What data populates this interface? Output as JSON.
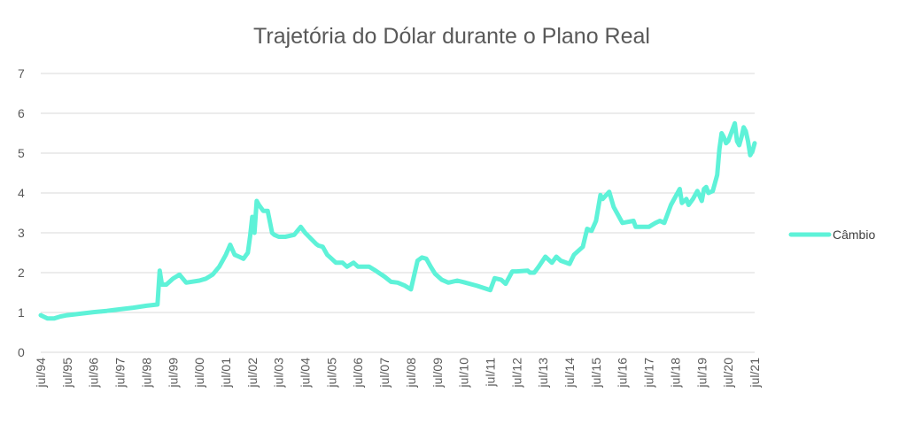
{
  "chart_data": {
    "type": "line",
    "title": "Trajetória do Dólar durante o Plano Real",
    "xlabel": "",
    "ylabel": "",
    "ylim": [
      0,
      7
    ],
    "yticks": [
      0,
      1,
      2,
      3,
      4,
      5,
      6,
      7
    ],
    "grid": true,
    "legend_position": "right",
    "x_tick_labels": [
      "jul/94",
      "jul/95",
      "jul/96",
      "jul/97",
      "jul/98",
      "jul/99",
      "jul/00",
      "jul/01",
      "jul/02",
      "jul/03",
      "jul/04",
      "jul/05",
      "jul/06",
      "jul/07",
      "jul/08",
      "jul/09",
      "jul/10",
      "jul/11",
      "jul/12",
      "jul/13",
      "jul/14",
      "jul/15",
      "jul/16",
      "jul/17",
      "jul/18",
      "jul/19",
      "jul/20",
      "jul/21"
    ],
    "series": [
      {
        "name": "Câmbio",
        "color": "#5ef2d8",
        "points": [
          [
            "jul/94",
            0.93
          ],
          [
            "out/94",
            0.85
          ],
          [
            "jan/95",
            0.85
          ],
          [
            "abr/95",
            0.9
          ],
          [
            "jul/95",
            0.93
          ],
          [
            "jan/96",
            0.97
          ],
          [
            "jul/96",
            1.01
          ],
          [
            "jan/97",
            1.04
          ],
          [
            "jul/97",
            1.08
          ],
          [
            "jan/98",
            1.12
          ],
          [
            "jul/98",
            1.17
          ],
          [
            "dez/98",
            1.2
          ],
          [
            "jan/99",
            2.05
          ],
          [
            "fev/99",
            1.7
          ],
          [
            "abr/99",
            1.7
          ],
          [
            "jun/99",
            1.8
          ],
          [
            "jul/99",
            1.85
          ],
          [
            "out/99",
            1.95
          ],
          [
            "jan/00",
            1.75
          ],
          [
            "jul/00",
            1.8
          ],
          [
            "out/00",
            1.85
          ],
          [
            "jan/01",
            1.95
          ],
          [
            "abr/01",
            2.15
          ],
          [
            "jul/01",
            2.45
          ],
          [
            "set/01",
            2.7
          ],
          [
            "nov/01",
            2.45
          ],
          [
            "jan/02",
            2.4
          ],
          [
            "mar/02",
            2.35
          ],
          [
            "mai/02",
            2.5
          ],
          [
            "jun/02",
            2.9
          ],
          [
            "jul/02",
            3.4
          ],
          [
            "ago/02",
            3.0
          ],
          [
            "set/02",
            3.8
          ],
          [
            "out/02",
            3.7
          ],
          [
            "dez/02",
            3.55
          ],
          [
            "fev/03",
            3.55
          ],
          [
            "abr/03",
            3.0
          ],
          [
            "mai/03",
            2.95
          ],
          [
            "jul/03",
            2.9
          ],
          [
            "out/03",
            2.9
          ],
          [
            "fev/04",
            2.95
          ],
          [
            "mai/04",
            3.15
          ],
          [
            "jul/04",
            3.0
          ],
          [
            "dez/04",
            2.72
          ],
          [
            "jan/05",
            2.68
          ],
          [
            "mar/05",
            2.65
          ],
          [
            "mai/05",
            2.45
          ],
          [
            "jul/05",
            2.35
          ],
          [
            "set/05",
            2.25
          ],
          [
            "dez/05",
            2.25
          ],
          [
            "fev/06",
            2.15
          ],
          [
            "mai/06",
            2.25
          ],
          [
            "jul/06",
            2.15
          ],
          [
            "dez/06",
            2.15
          ],
          [
            "mar/07",
            2.05
          ],
          [
            "jul/07",
            1.9
          ],
          [
            "out/07",
            1.77
          ],
          [
            "jan/08",
            1.75
          ],
          [
            "abr/08",
            1.68
          ],
          [
            "jul/08",
            1.58
          ],
          [
            "out/08",
            2.3
          ],
          [
            "dez/08",
            2.38
          ],
          [
            "fev/09",
            2.35
          ],
          [
            "abr/09",
            2.15
          ],
          [
            "jun/09",
            1.97
          ],
          [
            "set/09",
            1.82
          ],
          [
            "dez/09",
            1.75
          ],
          [
            "abr/10",
            1.8
          ],
          [
            "jul/10",
            1.76
          ],
          [
            "jan/11",
            1.67
          ],
          [
            "jul/11",
            1.56
          ],
          [
            "set/11",
            1.86
          ],
          [
            "dez/11",
            1.82
          ],
          [
            "fev/12",
            1.72
          ],
          [
            "mai/12",
            2.03
          ],
          [
            "jul/12",
            2.03
          ],
          [
            "dez/12",
            2.05
          ],
          [
            "jan/13",
            2.0
          ],
          [
            "mar/13",
            2.0
          ],
          [
            "mai/13",
            2.15
          ],
          [
            "ago/13",
            2.4
          ],
          [
            "nov/13",
            2.25
          ],
          [
            "jan/14",
            2.4
          ],
          [
            "mar/14",
            2.3
          ],
          [
            "jul/14",
            2.22
          ],
          [
            "set/14",
            2.45
          ],
          [
            "jan/15",
            2.65
          ],
          [
            "mar/15",
            3.1
          ],
          [
            "mai/15",
            3.05
          ],
          [
            "jul/15",
            3.3
          ],
          [
            "set/15",
            3.95
          ],
          [
            "out/15",
            3.85
          ],
          [
            "jan/16",
            4.03
          ],
          [
            "mar/16",
            3.65
          ],
          [
            "jul/16",
            3.25
          ],
          [
            "dez/16",
            3.3
          ],
          [
            "jan/17",
            3.15
          ],
          [
            "jul/17",
            3.15
          ],
          [
            "out/17",
            3.25
          ],
          [
            "dez/17",
            3.3
          ],
          [
            "fev/18",
            3.25
          ],
          [
            "mai/18",
            3.7
          ],
          [
            "set/18",
            4.1
          ],
          [
            "out/18",
            3.75
          ],
          [
            "dez/18",
            3.85
          ],
          [
            "jan/19",
            3.7
          ],
          [
            "mar/19",
            3.85
          ],
          [
            "mai/19",
            4.05
          ],
          [
            "jul/19",
            3.8
          ],
          [
            "ago/19",
            4.1
          ],
          [
            "set/19",
            4.15
          ],
          [
            "out/19",
            4.0
          ],
          [
            "dez/19",
            4.05
          ],
          [
            "jan/20",
            4.25
          ],
          [
            "fev/20",
            4.45
          ],
          [
            "mar/20",
            5.1
          ],
          [
            "abr/20",
            5.5
          ],
          [
            "mai/20",
            5.4
          ],
          [
            "jun/20",
            5.25
          ],
          [
            "jul/20",
            5.3
          ],
          [
            "ago/20",
            5.45
          ],
          [
            "set/20",
            5.6
          ],
          [
            "out/20",
            5.75
          ],
          [
            "nov/20",
            5.3
          ],
          [
            "dez/20",
            5.2
          ],
          [
            "jan/21",
            5.4
          ],
          [
            "fev/21",
            5.65
          ],
          [
            "mar/21",
            5.55
          ],
          [
            "abr/21",
            5.3
          ],
          [
            "mai/21",
            4.95
          ],
          [
            "jun/21",
            5.05
          ],
          [
            "jul/21",
            5.25
          ]
        ]
      }
    ]
  }
}
